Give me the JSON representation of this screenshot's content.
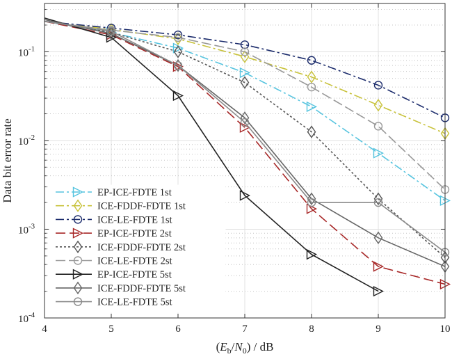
{
  "chart_data": {
    "type": "line",
    "xlabel": "(E_b/N_0) / dB",
    "xlabel_parts": {
      "open": "(",
      "e": "E",
      "b": "b",
      "slash": "/",
      "n": "N",
      "zero": "0",
      "close": ") / dB"
    },
    "ylabel": "Data bit error rate",
    "xlim": [
      4,
      10
    ],
    "ylim": [
      0.0001,
      0.35
    ],
    "y_scale": "log",
    "grid": true,
    "legend_position": "bottom-left",
    "x_ticks": [
      "4",
      "5",
      "6",
      "7",
      "8",
      "9",
      "10"
    ],
    "y_tick_labels": [
      {
        "base": "10",
        "exp": "-4"
      },
      {
        "base": "10",
        "exp": "-3"
      },
      {
        "base": "10",
        "exp": "-2"
      },
      {
        "base": "10",
        "exp": "-1"
      }
    ],
    "x": [
      4,
      5,
      6,
      7,
      8,
      9,
      10
    ],
    "series": [
      {
        "name": "EP-ICE-FDTE 1st",
        "color": "#56c4df",
        "dash": "12,4,3,4",
        "marker": "triangle-right",
        "values": [
          0.22,
          0.165,
          0.11,
          0.058,
          0.024,
          0.0072,
          0.0021
        ]
      },
      {
        "name": "ICE-FDDF-FDTE 1st",
        "color": "#c8c23a",
        "dash": "12,4,3,4",
        "marker": "diamond",
        "values": [
          0.22,
          0.178,
          0.14,
          0.088,
          0.052,
          0.025,
          0.012
        ]
      },
      {
        "name": "ICE-LE-FDTE 1st",
        "color": "#1c2c6c",
        "dash": "12,4,3,4",
        "marker": "circle",
        "values": [
          0.22,
          0.185,
          0.155,
          0.12,
          0.08,
          0.042,
          0.018
        ]
      },
      {
        "name": "EP-ICE-FDTE 2st",
        "color": "#a82828",
        "dash": "14,6",
        "marker": "triangle-right",
        "values": [
          0.22,
          0.155,
          0.068,
          0.014,
          0.0017,
          0.00038,
          0.00024
        ]
      },
      {
        "name": "ICE-FDDF-FDTE 2st",
        "color": "#555555",
        "dash": "3,3",
        "marker": "diamond",
        "values": [
          0.22,
          0.165,
          0.1,
          0.045,
          0.0125,
          0.0022,
          0.00048
        ]
      },
      {
        "name": "ICE-LE-FDTE 2st",
        "color": "#999999",
        "dash": "14,5",
        "marker": "circle",
        "values": [
          0.22,
          0.175,
          0.145,
          0.1,
          0.04,
          0.0145,
          0.0028
        ]
      },
      {
        "name": "EP-ICE-FDTE 5st",
        "color": "#222222",
        "dash": "",
        "marker": "triangle-right",
        "values": [
          0.24,
          0.145,
          0.032,
          0.0024,
          0.00052,
          0.0002,
          null
        ]
      },
      {
        "name": "ICE-FDDF-FDTE 5st",
        "color": "#666666",
        "dash": "",
        "marker": "diamond",
        "values": [
          0.23,
          0.16,
          0.07,
          0.018,
          0.0022,
          0.0008,
          0.00038
        ]
      },
      {
        "name": "ICE-LE-FDTE 5st",
        "color": "#8a8a8a",
        "dash": "",
        "marker": "circle",
        "values": [
          0.22,
          0.17,
          0.07,
          0.016,
          0.002,
          0.002,
          0.00055
        ]
      }
    ]
  }
}
